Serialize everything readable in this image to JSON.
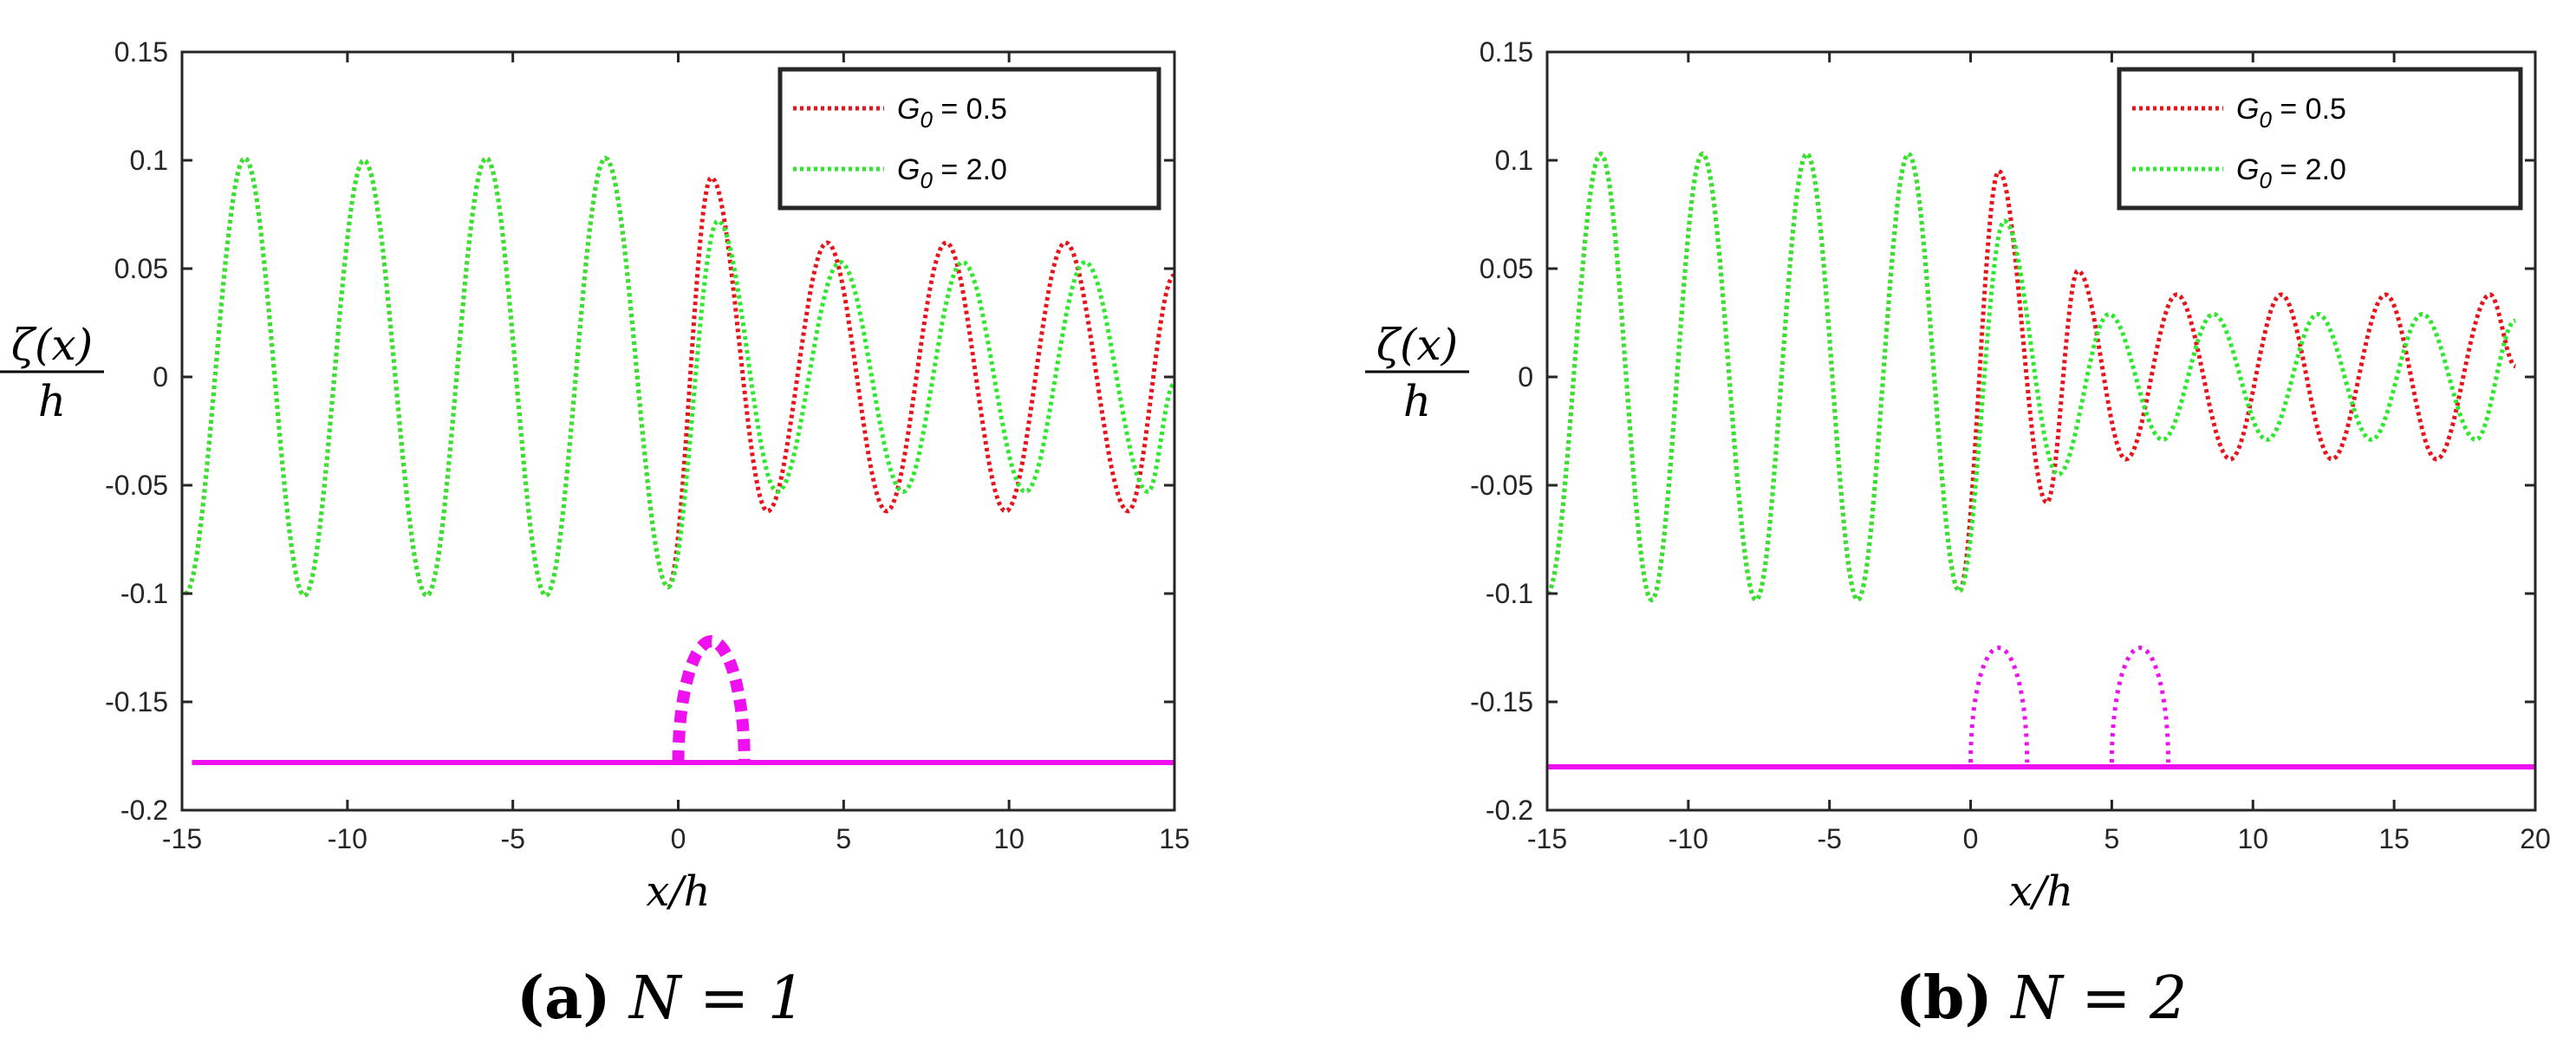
{
  "chart_data": [
    {
      "type": "line",
      "caption_letter": "(a)",
      "caption_math": "N = 1",
      "xlabel": "x/h",
      "ylabel_num": "ζ(x)",
      "ylabel_den": "h",
      "xlim": [
        -15,
        15
      ],
      "ylim": [
        -0.2,
        0.15
      ],
      "xticks": [
        "-15",
        "-10",
        "-5",
        "0",
        "5",
        "10",
        "15"
      ],
      "yticks": [
        "-0.2",
        "-0.15",
        "-0.1",
        "-0.05",
        "0",
        "0.05",
        "0.1",
        "0.15"
      ],
      "legend_position": "top-right",
      "series": [
        {
          "name": "G0 = 0.5",
          "legend_label": "G",
          "legend_sub": "0",
          "legend_rest": " = 0.5",
          "color": "#e8141c",
          "incident_amplitude": 0.1,
          "wavelength": 3.65,
          "transmitted_amplitude": 0.062,
          "transmitted_wavelength": 3.65,
          "region_end": 0,
          "points": [
            [
              -14.9,
              -0.1
            ],
            [
              -13.1,
              0.101
            ],
            [
              -11.3,
              -0.101
            ],
            [
              -9.5,
              0.1
            ],
            [
              -7.6,
              -0.101
            ],
            [
              -5.8,
              0.101
            ],
            [
              -4.0,
              -0.101
            ],
            [
              -2.2,
              0.101
            ],
            [
              -0.3,
              -0.097
            ],
            [
              1.0,
              0.092
            ],
            [
              2.7,
              -0.062
            ],
            [
              4.5,
              0.062
            ],
            [
              6.3,
              -0.062
            ],
            [
              8.1,
              0.062
            ],
            [
              9.9,
              -0.062
            ],
            [
              11.7,
              0.062
            ],
            [
              13.6,
              -0.062
            ],
            [
              15.0,
              0.047
            ]
          ]
        },
        {
          "name": "G0 = 2.0",
          "legend_label": "G",
          "legend_sub": "0",
          "legend_rest": " = 2.0",
          "color": "#2ee82e",
          "incident_amplitude": 0.1,
          "wavelength": 3.65,
          "transmitted_amplitude": 0.053,
          "transmitted_wavelength": 3.75,
          "region_end": 0,
          "points": [
            [
              -14.9,
              -0.1
            ],
            [
              -13.1,
              0.101
            ],
            [
              -11.3,
              -0.101
            ],
            [
              -9.5,
              0.1
            ],
            [
              -7.6,
              -0.101
            ],
            [
              -5.8,
              0.101
            ],
            [
              -4.0,
              -0.101
            ],
            [
              -2.2,
              0.101
            ],
            [
              -0.3,
              -0.097
            ],
            [
              1.2,
              0.072
            ],
            [
              3.0,
              -0.053
            ],
            [
              4.9,
              0.053
            ],
            [
              6.8,
              -0.053
            ],
            [
              8.6,
              0.053
            ],
            [
              10.5,
              -0.053
            ],
            [
              12.3,
              0.053
            ],
            [
              14.2,
              -0.053
            ],
            [
              15.0,
              -0.003
            ]
          ]
        }
      ],
      "seabed": {
        "color": "#ee10ee",
        "y": -0.178,
        "x_range": [
          -14.7,
          15
        ]
      },
      "obstacles": [
        {
          "x0": 0,
          "x1": 2,
          "base": -0.178,
          "top": -0.122,
          "style": "bold-dashed"
        }
      ]
    },
    {
      "type": "line",
      "caption_letter": "(b)",
      "caption_math": "N = 2",
      "xlabel": "x/h",
      "ylabel_num": "ζ(x)",
      "ylabel_den": "h",
      "xlim": [
        -15,
        20
      ],
      "ylim": [
        -0.2,
        0.15
      ],
      "xticks": [
        "-15",
        "-10",
        "-5",
        "0",
        "5",
        "10",
        "15",
        "20"
      ],
      "yticks": [
        "-0.2",
        "-0.15",
        "-0.1",
        "-0.05",
        "0",
        "0.05",
        "0.1",
        "0.15"
      ],
      "legend_position": "top-right",
      "series": [
        {
          "name": "G0 = 0.5",
          "legend_label": "G",
          "legend_sub": "0",
          "legend_rest": " = 0.5",
          "color": "#e8141c",
          "incident_amplitude": 0.1,
          "wavelength": 3.65,
          "transmitted_amplitude": 0.038,
          "transmitted_wavelength": 3.65,
          "region_end": 7,
          "points": [
            [
              -15.0,
              -0.1
            ],
            [
              -13.1,
              0.103
            ],
            [
              -11.3,
              -0.103
            ],
            [
              -9.5,
              0.103
            ],
            [
              -7.6,
              -0.103
            ],
            [
              -5.8,
              0.103
            ],
            [
              -4.0,
              -0.103
            ],
            [
              -2.2,
              0.103
            ],
            [
              -0.4,
              -0.099
            ],
            [
              1.0,
              0.095
            ],
            [
              2.7,
              -0.058
            ],
            [
              3.8,
              0.049
            ],
            [
              5.5,
              -0.038
            ],
            [
              7.3,
              0.038
            ],
            [
              9.2,
              -0.038
            ],
            [
              11.0,
              0.038
            ],
            [
              12.8,
              -0.038
            ],
            [
              14.7,
              0.038
            ],
            [
              16.5,
              -0.038
            ],
            [
              18.4,
              0.038
            ],
            [
              19.3,
              0.005
            ]
          ]
        },
        {
          "name": "G0 = 2.0",
          "legend_label": "G",
          "legend_sub": "0",
          "legend_rest": " = 2.0",
          "color": "#2ee82e",
          "incident_amplitude": 0.1,
          "wavelength": 3.65,
          "transmitted_amplitude": 0.029,
          "transmitted_wavelength": 3.75,
          "region_end": 7,
          "points": [
            [
              -15.0,
              -0.1
            ],
            [
              -13.1,
              0.103
            ],
            [
              -11.3,
              -0.103
            ],
            [
              -9.5,
              0.103
            ],
            [
              -7.6,
              -0.103
            ],
            [
              -5.8,
              0.103
            ],
            [
              -4.0,
              -0.103
            ],
            [
              -2.2,
              0.103
            ],
            [
              -0.4,
              -0.099
            ],
            [
              1.2,
              0.072
            ],
            [
              3.1,
              -0.045
            ],
            [
              4.9,
              0.029
            ],
            [
              6.8,
              -0.029
            ],
            [
              8.6,
              0.029
            ],
            [
              10.5,
              -0.029
            ],
            [
              12.3,
              0.029
            ],
            [
              14.2,
              -0.029
            ],
            [
              16.0,
              0.029
            ],
            [
              17.9,
              -0.029
            ],
            [
              19.3,
              0.026
            ]
          ]
        }
      ],
      "seabed": {
        "color": "#ee10ee",
        "y": -0.18,
        "x_range": [
          -15,
          20
        ]
      },
      "obstacles": [
        {
          "x0": 0,
          "x1": 2,
          "base": -0.178,
          "top": -0.125,
          "style": "dotted"
        },
        {
          "x0": 5,
          "x1": 7,
          "base": -0.178,
          "top": -0.125,
          "style": "dotted"
        }
      ]
    }
  ]
}
